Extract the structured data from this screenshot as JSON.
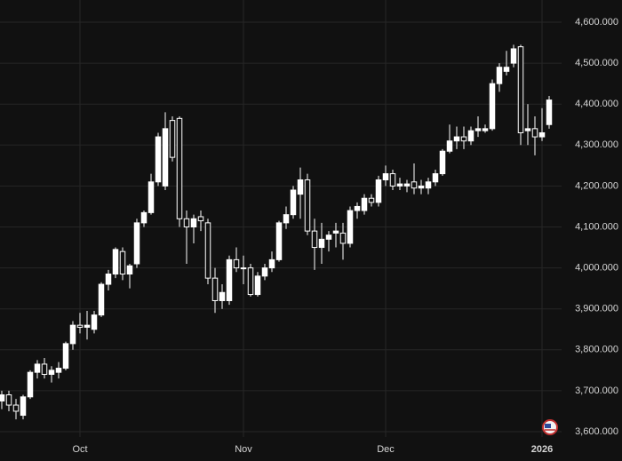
{
  "chart_data": {
    "type": "candlestick",
    "categories": [
      null,
      null,
      null,
      null,
      null,
      null,
      null,
      null,
      null,
      null,
      null,
      "Oct",
      null,
      null,
      null,
      null,
      null,
      null,
      null,
      null,
      null,
      null,
      null,
      null,
      null,
      null,
      null,
      null,
      null,
      null,
      null,
      null,
      null,
      null,
      "Nov",
      null,
      null,
      null,
      null,
      null,
      null,
      null,
      null,
      null,
      null,
      null,
      null,
      null,
      null,
      null,
      null,
      null,
      null,
      null,
      "Dec",
      null,
      null,
      null,
      null,
      null,
      null,
      null,
      null,
      null,
      null,
      null,
      null,
      null,
      null,
      null,
      null,
      null,
      null,
      null,
      null,
      null,
      "2026",
      null
    ],
    "open": [
      3675,
      3690,
      3665,
      3640,
      3685,
      3745,
      3765,
      3740,
      3745,
      3755,
      3815,
      3860,
      3855,
      3850,
      3885,
      3960,
      3985,
      4040,
      3985,
      4010,
      4110,
      4135,
      4210,
      4200,
      4360,
      4365,
      4120,
      4100,
      4125,
      4110,
      3975,
      3920,
      3920,
      4020,
      4000,
      4000,
      3935,
      3980,
      4000,
      4020,
      4110,
      4130,
      4180,
      4215,
      4090,
      4050,
      4070,
      4085,
      4085,
      4060,
      4140,
      4140,
      4170,
      4160,
      4215,
      4230,
      4200,
      4200,
      4210,
      4195,
      4195,
      4210,
      4230,
      4285,
      4310,
      4320,
      4310,
      4335,
      4335,
      4340,
      4450,
      4480,
      4500,
      4540,
      4335,
      4340,
      4320,
      4350
    ],
    "high": [
      3700,
      3700,
      3680,
      3690,
      3750,
      3775,
      3780,
      3760,
      3770,
      3820,
      3870,
      3890,
      3895,
      3895,
      3965,
      3995,
      4050,
      4050,
      4010,
      4120,
      4140,
      4230,
      4330,
      4380,
      4370,
      4370,
      4140,
      4130,
      4140,
      4120,
      4000,
      3960,
      4030,
      4050,
      4030,
      4010,
      3990,
      4010,
      4040,
      4115,
      4150,
      4200,
      4245,
      4230,
      4120,
      4110,
      4090,
      4110,
      4110,
      4150,
      4160,
      4180,
      4180,
      4225,
      4250,
      4240,
      4220,
      4215,
      4255,
      4215,
      4220,
      4240,
      4290,
      4350,
      4345,
      4345,
      4345,
      4370,
      4350,
      4460,
      4500,
      4530,
      4545,
      4545,
      4400,
      4370,
      4390,
      4420
    ],
    "low": [
      3655,
      3650,
      3630,
      3630,
      3680,
      3730,
      3730,
      3720,
      3730,
      3750,
      3800,
      3840,
      3825,
      3840,
      3880,
      3945,
      3975,
      3970,
      3950,
      4000,
      4100,
      4130,
      4200,
      4190,
      4260,
      4100,
      4010,
      4060,
      4090,
      3960,
      3890,
      3900,
      3910,
      3990,
      3960,
      3930,
      3930,
      3970,
      3990,
      4015,
      4095,
      4120,
      4120,
      4080,
      3995,
      4010,
      4040,
      4050,
      4020,
      4050,
      4120,
      4130,
      4150,
      4150,
      4200,
      4190,
      4190,
      4185,
      4180,
      4180,
      4180,
      4200,
      4225,
      4280,
      4290,
      4290,
      4300,
      4320,
      4330,
      4335,
      4430,
      4470,
      4490,
      4300,
      4300,
      4275,
      4310,
      4340
    ],
    "close": [
      3690,
      3665,
      3650,
      3685,
      3745,
      3765,
      3740,
      3750,
      3755,
      3815,
      3860,
      3855,
      3860,
      3885,
      3960,
      3985,
      4045,
      3985,
      4005,
      4110,
      4135,
      4210,
      4320,
      4340,
      4270,
      4120,
      4100,
      4120,
      4115,
      3975,
      3920,
      3940,
      4020,
      4000,
      4000,
      3935,
      3980,
      4000,
      4020,
      4110,
      4130,
      4190,
      4215,
      4090,
      4050,
      4070,
      4080,
      4090,
      4060,
      4140,
      4150,
      4170,
      4160,
      4215,
      4230,
      4200,
      4205,
      4205,
      4195,
      4200,
      4210,
      4230,
      4285,
      4310,
      4320,
      4310,
      4335,
      4340,
      4340,
      4450,
      4490,
      4490,
      4535,
      4330,
      4340,
      4320,
      4330,
      4410
    ],
    "color": "#ffffff",
    "ylim": [
      3600,
      4600
    ],
    "yticks": [
      {
        "value": 3600,
        "label": "3,600.000"
      },
      {
        "value": 3700,
        "label": "3,700.000"
      },
      {
        "value": 3800,
        "label": "3,800.000"
      },
      {
        "value": 3900,
        "label": "3,900.000"
      },
      {
        "value": 4000,
        "label": "4,000.000"
      },
      {
        "value": 4100,
        "label": "4,100.000"
      },
      {
        "value": 4200,
        "label": "4,200.000"
      },
      {
        "value": 4300,
        "label": "4,300.000"
      },
      {
        "value": 4400,
        "label": "4,400.000"
      },
      {
        "value": 4500,
        "label": "4,500.000"
      },
      {
        "value": 4600,
        "label": "4,600.000"
      }
    ],
    "grid": true
  }
}
